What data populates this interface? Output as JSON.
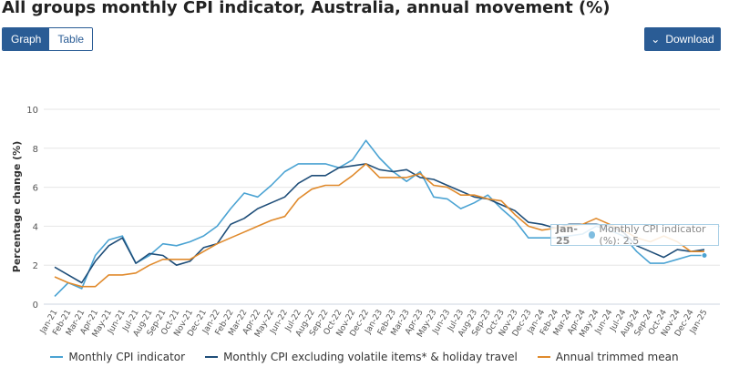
{
  "title": "All groups monthly CPI indicator, Australia, annual movement (%)",
  "toggle": {
    "graph": "Graph",
    "table": "Table",
    "active": "Graph"
  },
  "download": {
    "label": "Download",
    "icon": "chevron-down-icon"
  },
  "tooltip": {
    "period": "Jan-25",
    "text": "Monthly CPI indicator (%): 2.5"
  },
  "chart_data": {
    "type": "line",
    "title": "",
    "xlabel": "",
    "ylabel": "Percentage change (%)",
    "ylim": [
      0,
      10
    ],
    "yticks": [
      "0",
      "2",
      "4",
      "6",
      "8",
      "10"
    ],
    "grid": true,
    "legend": "bottom",
    "x": [
      "Jan-21",
      "Feb-21",
      "Mar-21",
      "Apr-21",
      "May-21",
      "Jun-21",
      "Jul-21",
      "Aug-21",
      "Sep-21",
      "Oct-21",
      "Nov-21",
      "Dec-21",
      "Jan-22",
      "Feb-22",
      "Mar-22",
      "Apr-22",
      "May-22",
      "Jun-22",
      "Jul-22",
      "Aug-22",
      "Sep-22",
      "Oct-22",
      "Nov-22",
      "Dec-22",
      "Jan-23",
      "Feb-23",
      "Mar-23",
      "Apr-23",
      "May-23",
      "Jun-23",
      "Jul-23",
      "Aug-23",
      "Sep-23",
      "Oct-23",
      "Nov-23",
      "Dec-23",
      "Jan-24",
      "Feb-24",
      "Mar-24",
      "Apr-24",
      "May-24",
      "Jun-24",
      "Jul-24",
      "Aug-24",
      "Sep-24",
      "Oct-24",
      "Nov-24",
      "Dec-24",
      "Jan-25"
    ],
    "series": [
      {
        "name": "Monthly CPI indicator",
        "color": "#4ba3d3",
        "values": [
          0.4,
          1.1,
          0.8,
          2.5,
          3.3,
          3.5,
          2.1,
          2.5,
          3.1,
          3.0,
          3.2,
          3.5,
          4.0,
          4.9,
          5.7,
          5.5,
          6.1,
          6.8,
          7.2,
          7.2,
          7.2,
          7.0,
          7.4,
          8.4,
          7.5,
          6.8,
          6.3,
          6.8,
          5.5,
          5.4,
          4.9,
          5.2,
          5.6,
          4.9,
          4.3,
          3.4,
          3.4,
          3.4,
          3.5,
          3.6,
          4.0,
          3.8,
          3.5,
          2.7,
          2.1,
          2.1,
          2.3,
          2.5,
          2.5
        ]
      },
      {
        "name": "Monthly CPI excluding volatile items* & holiday travel",
        "color": "#1f4e79",
        "values": [
          1.9,
          1.5,
          1.1,
          2.2,
          3.0,
          3.4,
          2.1,
          2.6,
          2.5,
          2.0,
          2.2,
          2.9,
          3.1,
          4.1,
          4.4,
          4.9,
          5.2,
          5.5,
          6.2,
          6.6,
          6.6,
          7.0,
          7.1,
          7.2,
          6.9,
          6.8,
          6.9,
          6.5,
          6.4,
          6.1,
          5.8,
          5.5,
          5.4,
          5.1,
          4.8,
          4.2,
          4.1,
          3.9,
          4.1,
          4.1,
          4.1,
          4.0,
          3.7,
          3.0,
          2.7,
          2.4,
          2.8,
          2.7,
          2.8
        ]
      },
      {
        "name": "Annual trimmed mean",
        "color": "#e08a2c",
        "values": [
          1.4,
          1.1,
          0.9,
          0.9,
          1.5,
          1.5,
          1.6,
          2.0,
          2.3,
          2.3,
          2.3,
          2.7,
          3.1,
          3.4,
          3.7,
          4.0,
          4.3,
          4.5,
          5.4,
          5.9,
          6.1,
          6.1,
          6.6,
          7.2,
          6.5,
          6.5,
          6.5,
          6.7,
          6.1,
          6.0,
          5.6,
          5.6,
          5.4,
          5.3,
          4.6,
          4.0,
          3.8,
          3.9,
          4.0,
          4.1,
          4.4,
          4.1,
          3.8,
          3.4,
          3.2,
          3.5,
          3.2,
          2.7,
          2.7
        ]
      }
    ]
  }
}
